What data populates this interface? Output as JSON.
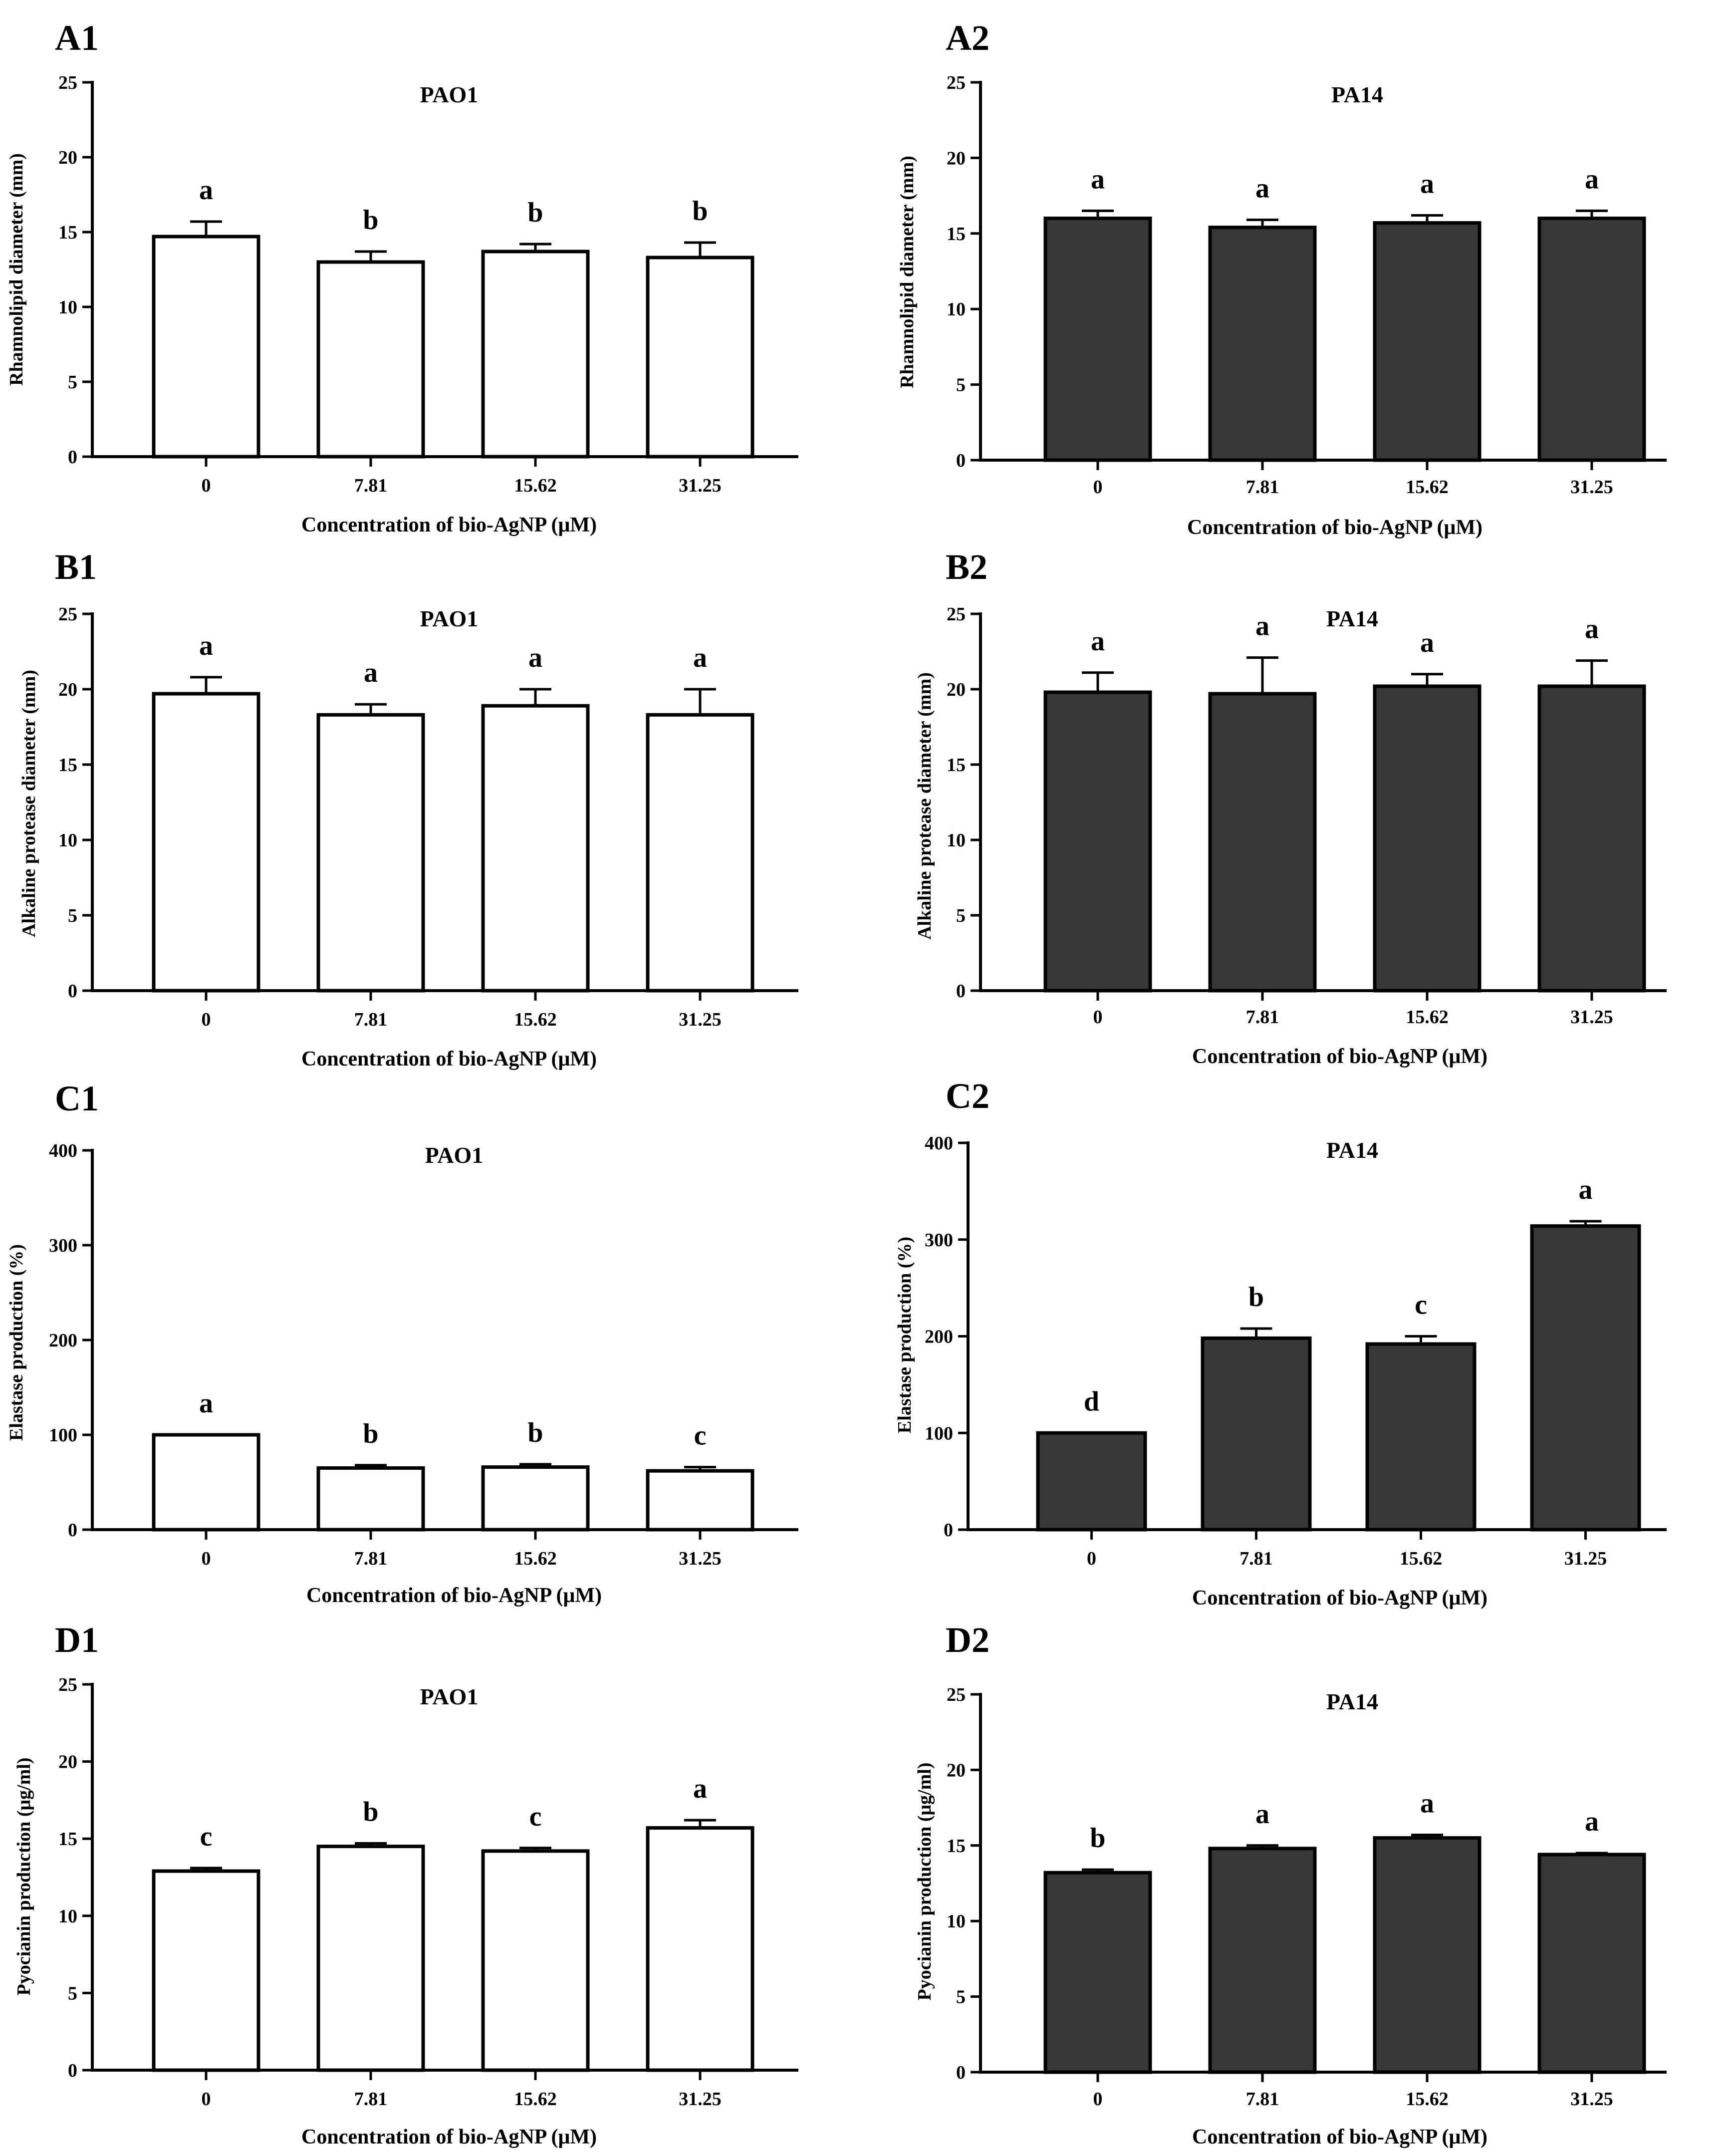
{
  "colors": {
    "light_fill": "#ffffff",
    "dark_fill": "#383838",
    "stroke": "#000000"
  },
  "chart_data": [
    {
      "id": "A1",
      "panel_label": "A1",
      "type": "bar",
      "title": "PAO1",
      "ylabel": "Rhamnolipid diameter (mm)",
      "xlabel": "Concentration of bio-AgNP (μM)",
      "categories": [
        "0",
        "7.81",
        "15.62",
        "31.25"
      ],
      "values": [
        14.7,
        13.0,
        13.7,
        13.3
      ],
      "errors": [
        1.0,
        0.7,
        0.5,
        1.0
      ],
      "significance": [
        "a",
        "b",
        "b",
        "b"
      ],
      "ylim": [
        0,
        25
      ],
      "yticks": [
        0,
        5,
        10,
        15,
        20,
        25
      ],
      "fill": "light"
    },
    {
      "id": "A2",
      "panel_label": "A2",
      "type": "bar",
      "title": "PA14",
      "ylabel": "Rhamnolipid diameter (mm)",
      "xlabel": "Concentration of bio-AgNP (μM)",
      "categories": [
        "0",
        "7.81",
        "15.62",
        "31.25"
      ],
      "values": [
        16.0,
        15.4,
        15.7,
        16.0
      ],
      "errors": [
        0.5,
        0.5,
        0.5,
        0.5
      ],
      "significance": [
        "a",
        "a",
        "a",
        "a"
      ],
      "ylim": [
        0,
        25
      ],
      "yticks": [
        0,
        5,
        10,
        15,
        20,
        25
      ],
      "fill": "dark"
    },
    {
      "id": "B1",
      "panel_label": "B1",
      "type": "bar",
      "title": "PAO1",
      "ylabel": "Alkaline protease diameter (mm)",
      "xlabel": "Concentration of bio-AgNP (μM)",
      "categories": [
        "0",
        "7.81",
        "15.62",
        "31.25"
      ],
      "values": [
        19.7,
        18.3,
        18.9,
        18.3
      ],
      "errors": [
        1.1,
        0.7,
        1.1,
        1.7
      ],
      "significance": [
        "a",
        "a",
        "a",
        "a"
      ],
      "ylim": [
        0,
        25
      ],
      "yticks": [
        0,
        5,
        10,
        15,
        20,
        25
      ],
      "fill": "light"
    },
    {
      "id": "B2",
      "panel_label": "B2",
      "type": "bar",
      "title": "PA14",
      "ylabel": "Alkaline protease diameter (mm)",
      "xlabel": "Concentration of bio-AgNP (μM)",
      "categories": [
        "0",
        "7.81",
        "15.62",
        "31.25"
      ],
      "values": [
        19.8,
        19.7,
        20.2,
        20.2
      ],
      "errors": [
        1.3,
        2.4,
        0.8,
        1.7
      ],
      "significance": [
        "a",
        "a",
        "a",
        "a"
      ],
      "ylim": [
        0,
        25
      ],
      "yticks": [
        0,
        5,
        10,
        15,
        20,
        25
      ],
      "fill": "dark"
    },
    {
      "id": "C1",
      "panel_label": "C1",
      "type": "bar",
      "title": "PAO1",
      "ylabel": "Elastase production (%)",
      "xlabel": "Concentration of bio-AgNP (μM)",
      "categories": [
        "0",
        "7.81",
        "15.62",
        "31.25"
      ],
      "values": [
        100,
        65,
        66,
        62
      ],
      "errors": [
        0,
        3,
        3,
        4
      ],
      "significance": [
        "a",
        "b",
        "b",
        "c"
      ],
      "ylim": [
        0,
        400
      ],
      "yticks": [
        0,
        100,
        200,
        300,
        400
      ],
      "fill": "light"
    },
    {
      "id": "C2",
      "panel_label": "C2",
      "type": "bar",
      "title": "PA14",
      "ylabel": "Elastase production (%)",
      "xlabel": "Concentration of bio-AgNP (μM)",
      "categories": [
        "0",
        "7.81",
        "15.62",
        "31.25"
      ],
      "values": [
        100,
        198,
        192,
        314
      ],
      "errors": [
        0,
        10,
        8,
        5
      ],
      "significance": [
        "d",
        "b",
        "c",
        "a"
      ],
      "ylim": [
        0,
        400
      ],
      "yticks": [
        0,
        100,
        200,
        300,
        400
      ],
      "fill": "dark"
    },
    {
      "id": "D1",
      "panel_label": "D1",
      "type": "bar",
      "title": "PAO1",
      "ylabel": "Pyocianin production (μg/ml)",
      "xlabel": "Concentration of bio-AgNP (μM)",
      "categories": [
        "0",
        "7.81",
        "15.62",
        "31.25"
      ],
      "values": [
        12.9,
        14.5,
        14.2,
        15.7
      ],
      "errors": [
        0.2,
        0.2,
        0.2,
        0.5
      ],
      "significance": [
        "c",
        "b",
        "c",
        "a"
      ],
      "ylim": [
        0,
        25
      ],
      "yticks": [
        0,
        5,
        10,
        15,
        20,
        25
      ],
      "fill": "light"
    },
    {
      "id": "D2",
      "panel_label": "D2",
      "type": "bar",
      "title": "PA14",
      "ylabel": "Pyocianin production (μg/ml)",
      "xlabel": "Concentration of bio-AgNP (μM)",
      "categories": [
        "0",
        "7.81",
        "15.62",
        "31.25"
      ],
      "values": [
        13.2,
        14.8,
        15.5,
        14.4
      ],
      "errors": [
        0.2,
        0.2,
        0.2,
        0.1
      ],
      "significance": [
        "b",
        "a",
        "a",
        "a"
      ],
      "ylim": [
        0,
        25
      ],
      "yticks": [
        0,
        5,
        10,
        15,
        20,
        25
      ],
      "fill": "dark"
    }
  ]
}
